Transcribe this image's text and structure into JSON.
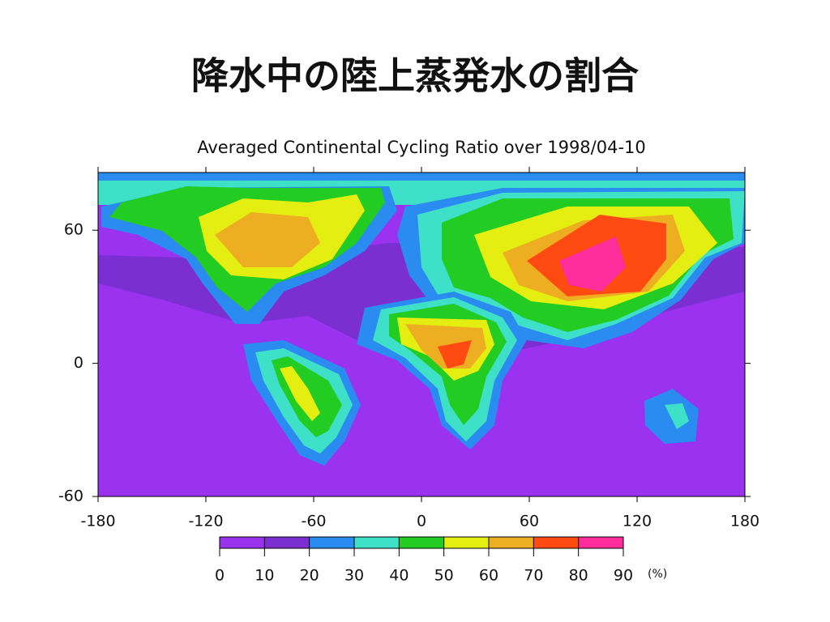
{
  "title": "降水中の陸上蒸発水の割合",
  "map": {
    "subtitle": "Averaged Continental Cycling Ratio over 1998/04-10",
    "xlim": [
      -180,
      180
    ],
    "ylim": [
      -60,
      86
    ],
    "xticks": [
      -180,
      -120,
      -60,
      0,
      60,
      120,
      180
    ],
    "yticks": [
      -60,
      0,
      60
    ],
    "colorbar": {
      "ticks": [
        0,
        10,
        20,
        30,
        40,
        50,
        60,
        70,
        80,
        90
      ],
      "colors": [
        "#9a32f0",
        "#7b2fd2",
        "#2a8cf0",
        "#3ee0c8",
        "#22cc22",
        "#e4ee10",
        "#eeae22",
        "#ff4a12",
        "#ff2c9c"
      ],
      "unit": "(%)"
    }
  }
}
